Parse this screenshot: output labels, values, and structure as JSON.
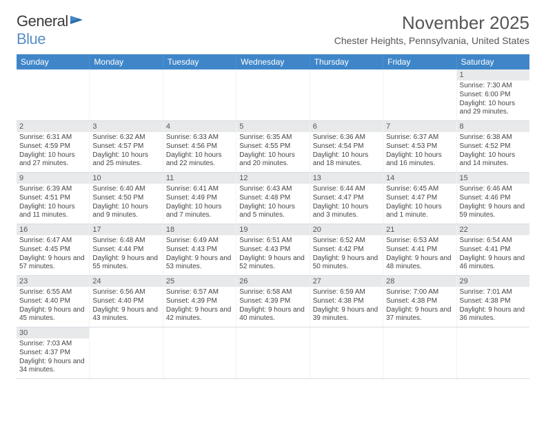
{
  "logo": {
    "text1": "General",
    "text2": "Blue"
  },
  "title": "November 2025",
  "subtitle": "Chester Heights, Pennsylvania, United States",
  "header_color": "#3f86c9",
  "daynum_bg": "#e7e9eb",
  "day_names": [
    "Sunday",
    "Monday",
    "Tuesday",
    "Wednesday",
    "Thursday",
    "Friday",
    "Saturday"
  ],
  "weeks": [
    [
      null,
      null,
      null,
      null,
      null,
      null,
      {
        "n": "1",
        "sr": "7:30 AM",
        "ss": "6:00 PM",
        "dl": "10 hours and 29 minutes."
      }
    ],
    [
      {
        "n": "2",
        "sr": "6:31 AM",
        "ss": "4:59 PM",
        "dl": "10 hours and 27 minutes."
      },
      {
        "n": "3",
        "sr": "6:32 AM",
        "ss": "4:57 PM",
        "dl": "10 hours and 25 minutes."
      },
      {
        "n": "4",
        "sr": "6:33 AM",
        "ss": "4:56 PM",
        "dl": "10 hours and 22 minutes."
      },
      {
        "n": "5",
        "sr": "6:35 AM",
        "ss": "4:55 PM",
        "dl": "10 hours and 20 minutes."
      },
      {
        "n": "6",
        "sr": "6:36 AM",
        "ss": "4:54 PM",
        "dl": "10 hours and 18 minutes."
      },
      {
        "n": "7",
        "sr": "6:37 AM",
        "ss": "4:53 PM",
        "dl": "10 hours and 16 minutes."
      },
      {
        "n": "8",
        "sr": "6:38 AM",
        "ss": "4:52 PM",
        "dl": "10 hours and 14 minutes."
      }
    ],
    [
      {
        "n": "9",
        "sr": "6:39 AM",
        "ss": "4:51 PM",
        "dl": "10 hours and 11 minutes."
      },
      {
        "n": "10",
        "sr": "6:40 AM",
        "ss": "4:50 PM",
        "dl": "10 hours and 9 minutes."
      },
      {
        "n": "11",
        "sr": "6:41 AM",
        "ss": "4:49 PM",
        "dl": "10 hours and 7 minutes."
      },
      {
        "n": "12",
        "sr": "6:43 AM",
        "ss": "4:48 PM",
        "dl": "10 hours and 5 minutes."
      },
      {
        "n": "13",
        "sr": "6:44 AM",
        "ss": "4:47 PM",
        "dl": "10 hours and 3 minutes."
      },
      {
        "n": "14",
        "sr": "6:45 AM",
        "ss": "4:47 PM",
        "dl": "10 hours and 1 minute."
      },
      {
        "n": "15",
        "sr": "6:46 AM",
        "ss": "4:46 PM",
        "dl": "9 hours and 59 minutes."
      }
    ],
    [
      {
        "n": "16",
        "sr": "6:47 AM",
        "ss": "4:45 PM",
        "dl": "9 hours and 57 minutes."
      },
      {
        "n": "17",
        "sr": "6:48 AM",
        "ss": "4:44 PM",
        "dl": "9 hours and 55 minutes."
      },
      {
        "n": "18",
        "sr": "6:49 AM",
        "ss": "4:43 PM",
        "dl": "9 hours and 53 minutes."
      },
      {
        "n": "19",
        "sr": "6:51 AM",
        "ss": "4:43 PM",
        "dl": "9 hours and 52 minutes."
      },
      {
        "n": "20",
        "sr": "6:52 AM",
        "ss": "4:42 PM",
        "dl": "9 hours and 50 minutes."
      },
      {
        "n": "21",
        "sr": "6:53 AM",
        "ss": "4:41 PM",
        "dl": "9 hours and 48 minutes."
      },
      {
        "n": "22",
        "sr": "6:54 AM",
        "ss": "4:41 PM",
        "dl": "9 hours and 46 minutes."
      }
    ],
    [
      {
        "n": "23",
        "sr": "6:55 AM",
        "ss": "4:40 PM",
        "dl": "9 hours and 45 minutes."
      },
      {
        "n": "24",
        "sr": "6:56 AM",
        "ss": "4:40 PM",
        "dl": "9 hours and 43 minutes."
      },
      {
        "n": "25",
        "sr": "6:57 AM",
        "ss": "4:39 PM",
        "dl": "9 hours and 42 minutes."
      },
      {
        "n": "26",
        "sr": "6:58 AM",
        "ss": "4:39 PM",
        "dl": "9 hours and 40 minutes."
      },
      {
        "n": "27",
        "sr": "6:59 AM",
        "ss": "4:38 PM",
        "dl": "9 hours and 39 minutes."
      },
      {
        "n": "28",
        "sr": "7:00 AM",
        "ss": "4:38 PM",
        "dl": "9 hours and 37 minutes."
      },
      {
        "n": "29",
        "sr": "7:01 AM",
        "ss": "4:38 PM",
        "dl": "9 hours and 36 minutes."
      }
    ],
    [
      {
        "n": "30",
        "sr": "7:03 AM",
        "ss": "4:37 PM",
        "dl": "9 hours and 34 minutes."
      },
      null,
      null,
      null,
      null,
      null,
      null
    ]
  ],
  "labels": {
    "sunrise": "Sunrise:",
    "sunset": "Sunset:",
    "daylight": "Daylight:"
  }
}
